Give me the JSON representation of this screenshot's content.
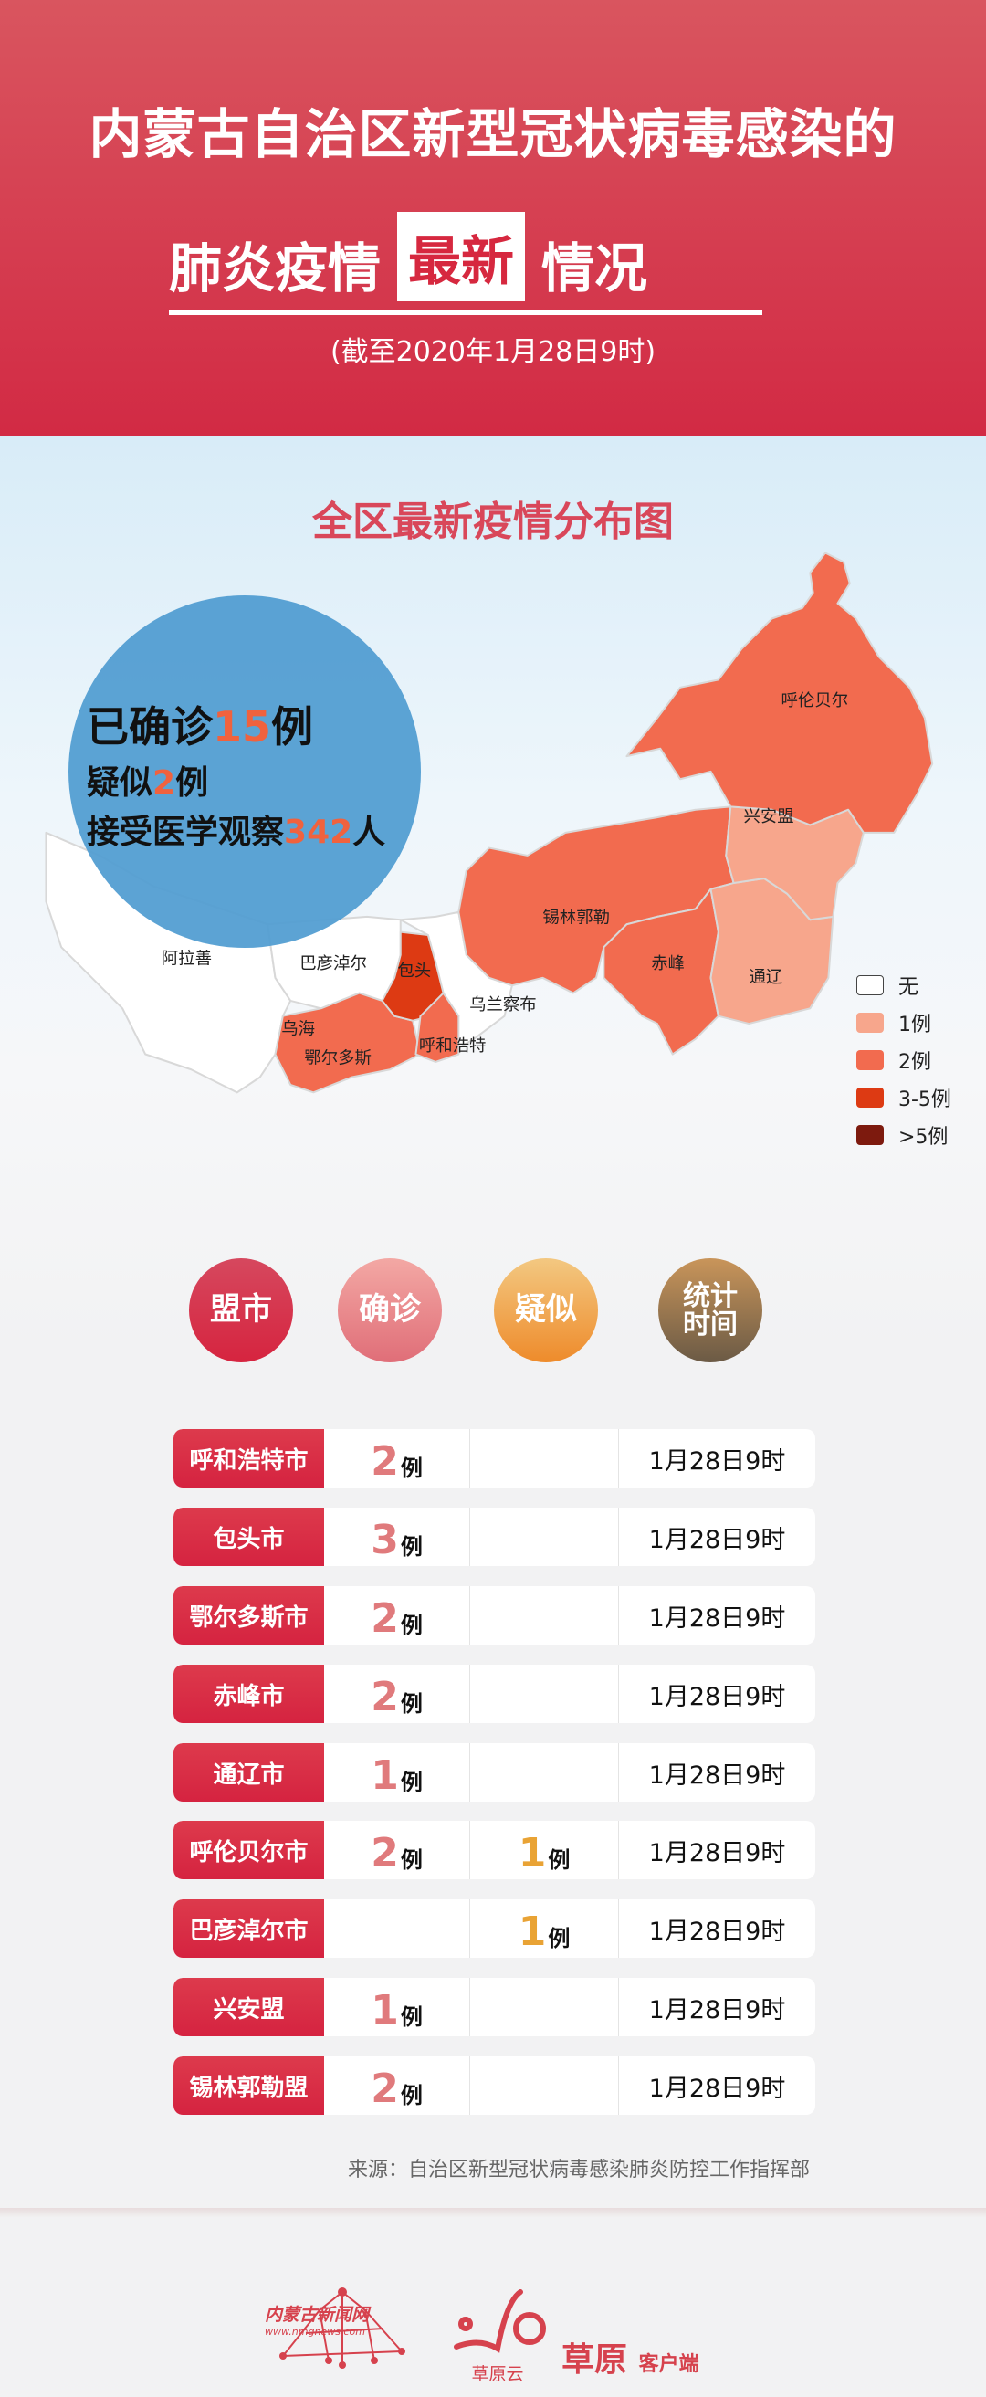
{
  "header": {
    "title_line1": "内蒙古自治区新型冠状病毒感染的",
    "title_line2_a": "肺炎疫情",
    "title_line2_highlight": "最新",
    "title_line2_b": "情况",
    "date": "(截至2020年1月28日9时)",
    "color": "#d42a44"
  },
  "map": {
    "title": "全区最新疫情分布图",
    "summary": {
      "confirmed_pre": "已确诊",
      "confirmed": "15",
      "confirmed_unit": "例",
      "suspected_pre": "疑似",
      "suspected": "2",
      "suspected_unit": "例",
      "observed_pre": "接受医学观察",
      "observed": "342",
      "observed_unit": "人"
    },
    "regions": [
      {
        "name": "呼伦贝尔",
        "level": "2例"
      },
      {
        "name": "兴安盟",
        "level": "1例"
      },
      {
        "name": "锡林郭勒",
        "level": "2例"
      },
      {
        "name": "赤峰",
        "level": "2例"
      },
      {
        "name": "通辽",
        "level": "1例"
      },
      {
        "name": "阿拉善",
        "level": "无"
      },
      {
        "name": "巴彦淖尔",
        "level": "无"
      },
      {
        "name": "包头",
        "level": "3-5例"
      },
      {
        "name": "乌兰察布",
        "level": "无"
      },
      {
        "name": "乌海",
        "level": "无"
      },
      {
        "name": "鄂尔多斯",
        "level": "2例"
      },
      {
        "name": "呼和浩特",
        "level": "2例"
      }
    ],
    "legend": [
      {
        "label": "无",
        "color": "#ffffff"
      },
      {
        "label": "1例",
        "color": "#f7a68c"
      },
      {
        "label": "2例",
        "color": "#f26b4f"
      },
      {
        "label": "3-5例",
        "color": "#dd3a13"
      },
      {
        "label": ">5例",
        "color": "#7d1a0e"
      }
    ]
  },
  "table": {
    "headers": [
      "盟市",
      "确诊",
      "疑似",
      "统计时间"
    ],
    "header_colors": [
      "#d6354f",
      "#eb8a8c",
      "#f0a54e",
      "#9c7a52"
    ],
    "unit": "例",
    "rows": [
      {
        "name": "呼和浩特市",
        "confirmed": "2",
        "suspected": "",
        "time": "1月28日9时"
      },
      {
        "name": "包头市",
        "confirmed": "3",
        "suspected": "",
        "time": "1月28日9时"
      },
      {
        "name": "鄂尔多斯市",
        "confirmed": "2",
        "suspected": "",
        "time": "1月28日9时"
      },
      {
        "name": "赤峰市",
        "confirmed": "2",
        "suspected": "",
        "time": "1月28日9时"
      },
      {
        "name": "通辽市",
        "confirmed": "1",
        "suspected": "",
        "time": "1月28日9时"
      },
      {
        "name": "呼伦贝尔市",
        "confirmed": "2",
        "suspected": "1",
        "time": "1月28日9时"
      },
      {
        "name": "巴彦淖尔市",
        "confirmed": "",
        "suspected": "1",
        "time": "1月28日9时"
      },
      {
        "name": "兴安盟",
        "confirmed": "1",
        "suspected": "",
        "time": "1月28日9时"
      },
      {
        "name": "锡林郭勒盟",
        "confirmed": "2",
        "suspected": "",
        "time": "1月28日9时"
      }
    ],
    "source": "来源：自治区新型冠状病毒感染肺炎防控工作指挥部"
  },
  "footer": {
    "logo1": "内蒙古新闻网",
    "logo1_url_text": "www.nmgnews.com",
    "logo2": "草原云",
    "logo3": "草原",
    "logo3_suffix": "客户端"
  }
}
